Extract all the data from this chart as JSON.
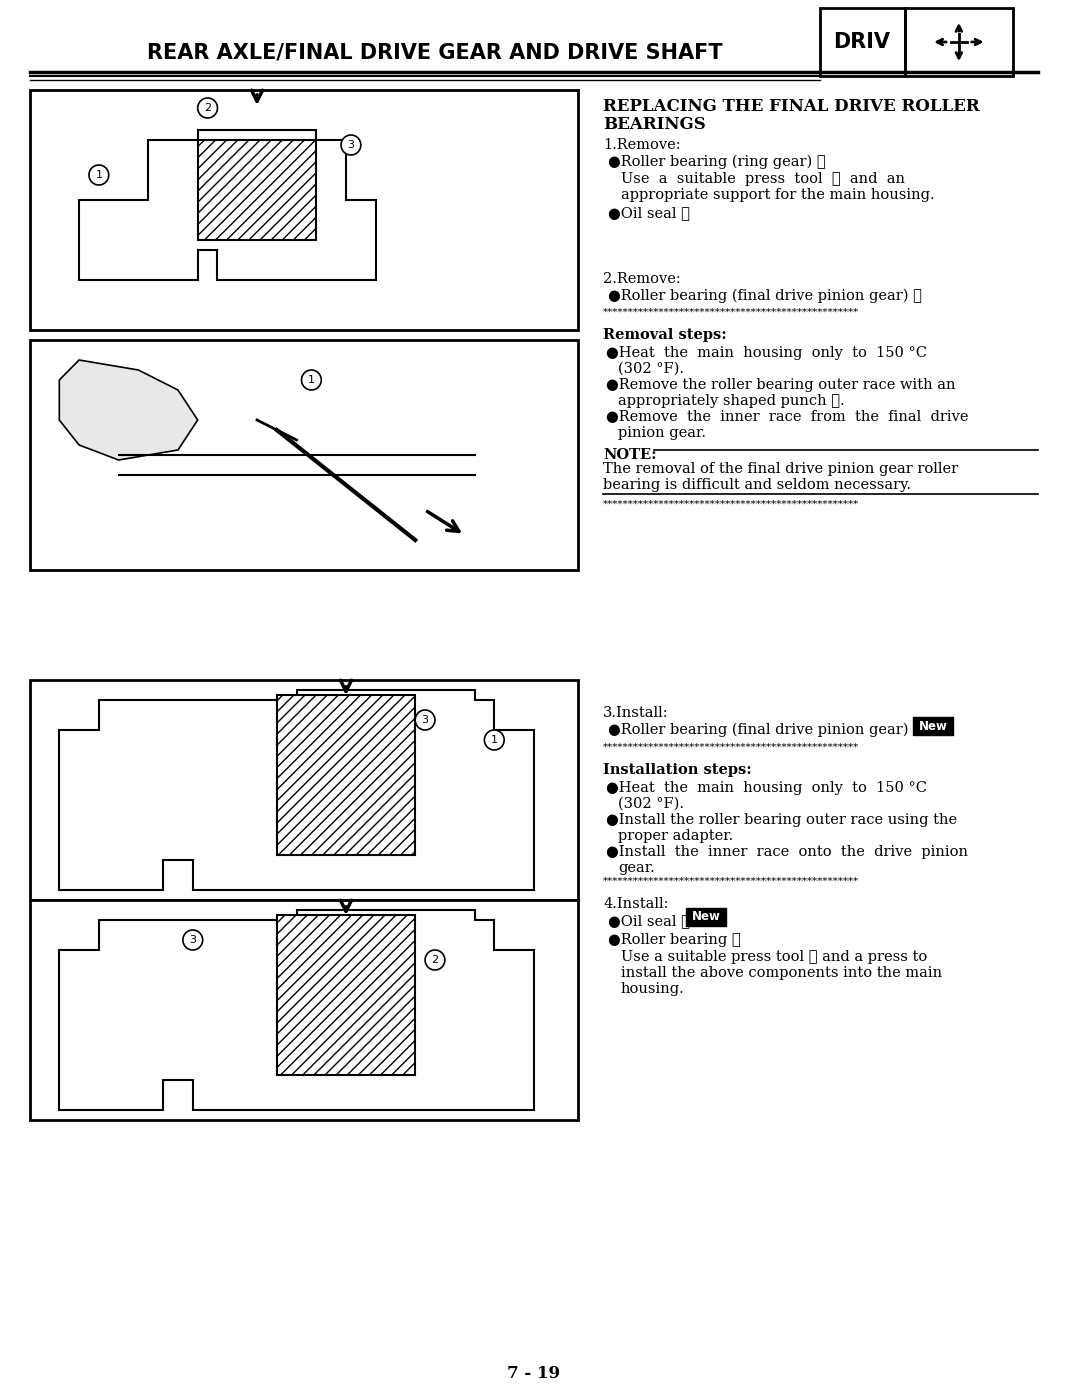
{
  "bg_color": "#ffffff",
  "page_number": "7 - 19",
  "header_title": "REAR AXLE/FINAL DRIVE GEAR AND DRIVE SHAFT",
  "driv_label": "DRIV",
  "section_title": "REPLACING THE FINAL DRIVE ROLLER\nBEARINGS",
  "step1_header": "1.Remove:",
  "step1_bullets": [
    {
      "text": "Roller bearing (ring gear) ①",
      "indent": 0
    },
    {
      "text": "Use  a  suitable  press  tool  ②  and  an\nappropriate support for the main housing.",
      "indent": 1
    },
    {
      "text": "Oil seal ③",
      "indent": 0
    }
  ],
  "step2_header": "2.Remove:",
  "step2_bullets": [
    {
      "text": "Roller bearing (final drive pinion gear) ①",
      "indent": 0
    }
  ],
  "divider1": "**************************************************",
  "removal_steps_header": "Removal steps:",
  "removal_steps_bullets": [
    "Heat  the  main  housing  only  to  150 °C\n(302 °F).",
    "Remove the roller bearing outer race with an\nappropriately shaped punch ②.",
    "Remove  the  inner  race  from  the  final  drive\npinion gear."
  ],
  "note_header": "NOTE:",
  "note_text": "The removal of the final drive pinion gear roller\nbearing is difficult and seldom necessary.",
  "divider2": "**************************************************",
  "step3_header": "3.Install:",
  "step3_bullets": [
    {
      "text": "Roller bearing (final drive pinion gear)",
      "new_tag": true,
      "indent": 0
    }
  ],
  "divider3": "**************************************************",
  "install_steps_header": "Installation steps:",
  "install_steps_bullets": [
    "Heat  the  main  housing  only  to  150 °C\n(302 °F).",
    "Install the roller bearing outer race using the\nproper adapter.",
    "Install  the  inner  race  onto  the  drive  pinion\ngear."
  ],
  "divider4": "**************************************************",
  "step4_header": "4.Install:",
  "step4_bullets": [
    {
      "text": "Oil seal ①",
      "new_tag": true,
      "indent": 0
    },
    {
      "text": "Roller bearing ②",
      "new_tag": false,
      "indent": 0
    }
  ],
  "step4_extra": "Use a suitable press tool ③ and a press to\ninstall the above components into the main\nhousing."
}
